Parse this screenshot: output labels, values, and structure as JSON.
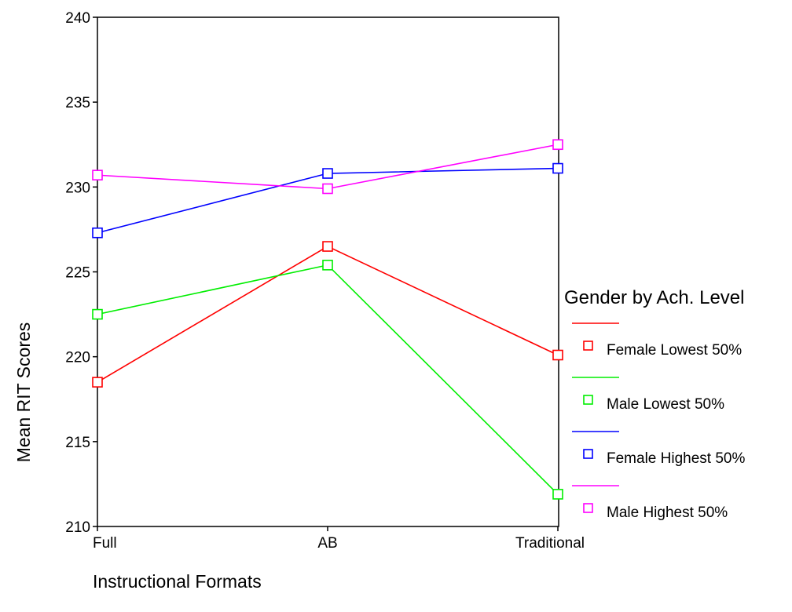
{
  "chart_data": {
    "type": "line",
    "title": "",
    "xlabel": "Instructional Formats",
    "ylabel": "Mean RIT Scores",
    "categories": [
      "Full",
      "AB",
      "Traditional"
    ],
    "ylim": [
      210,
      240
    ],
    "yticks": [
      "210",
      "215",
      "220",
      "225",
      "230",
      "235",
      "240"
    ],
    "grid": false,
    "legend": {
      "title": "Gender by Ach. Level",
      "placement": "right"
    },
    "series": [
      {
        "name": "Female Lowest 50%",
        "color": "#ff0000",
        "values": [
          218.5,
          226.5,
          220.1
        ]
      },
      {
        "name": "Male Lowest 50%",
        "color": "#00ee00",
        "values": [
          222.5,
          225.4,
          211.9
        ]
      },
      {
        "name": "Female Highest 50%",
        "color": "#0000ff",
        "values": [
          227.3,
          230.8,
          231.1
        ]
      },
      {
        "name": "Male Highest 50%",
        "color": "#ff00ff",
        "values": [
          230.7,
          229.9,
          232.5
        ]
      }
    ]
  }
}
